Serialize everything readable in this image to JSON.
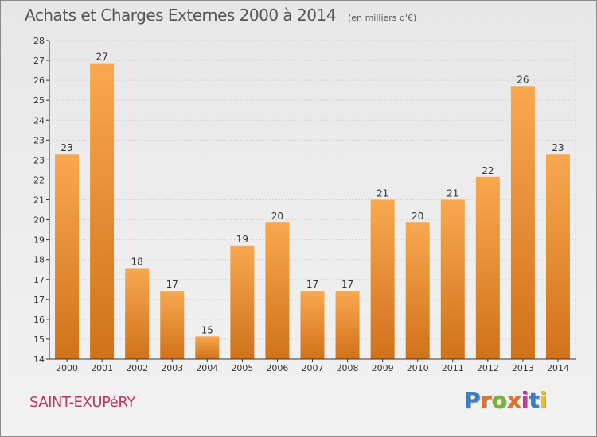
{
  "title": "Achats et Charges Externes 2000 à 2014",
  "subtitle": "(en milliers d'€)",
  "commune": "SAINT-EXUPéRY",
  "brand": {
    "text": "Proxiti",
    "letter_colors": [
      "#3a7fc2",
      "#e0702a",
      "#7bb33a",
      "#e0702a",
      "#c23a9a",
      "#3a7fc2",
      "#e8c020"
    ]
  },
  "colors": {
    "bar_top": "#f9a84f",
    "bar_bottom": "#d0721a",
    "grid": "#d4d4d4",
    "axis": "#333333",
    "text": "#333333"
  },
  "chart_data": {
    "type": "bar",
    "title": "Achats et Charges Externes 2000 à 2014",
    "subtitle": "(en milliers d'€)",
    "categories": [
      "2000",
      "2001",
      "2002",
      "2003",
      "2004",
      "2005",
      "2006",
      "2007",
      "2008",
      "2009",
      "2010",
      "2011",
      "2012",
      "2013",
      "2014"
    ],
    "values": [
      23,
      27,
      18,
      17,
      15,
      19,
      20,
      17,
      17,
      21,
      20,
      21,
      22,
      26,
      23
    ],
    "value_labels": [
      "23",
      "27",
      "18",
      "17",
      "15",
      "19",
      "20",
      "17",
      "17",
      "21",
      "20",
      "21",
      "22",
      "26",
      "23"
    ],
    "y_tick_labels": [
      "14",
      "15",
      "16",
      "17",
      "17",
      "18",
      "19",
      "20",
      "21",
      "22",
      "23",
      "23",
      "24",
      "25",
      "26",
      "27",
      "28"
    ],
    "ylim": [
      14,
      28
    ],
    "grid": true,
    "legend": "none"
  }
}
